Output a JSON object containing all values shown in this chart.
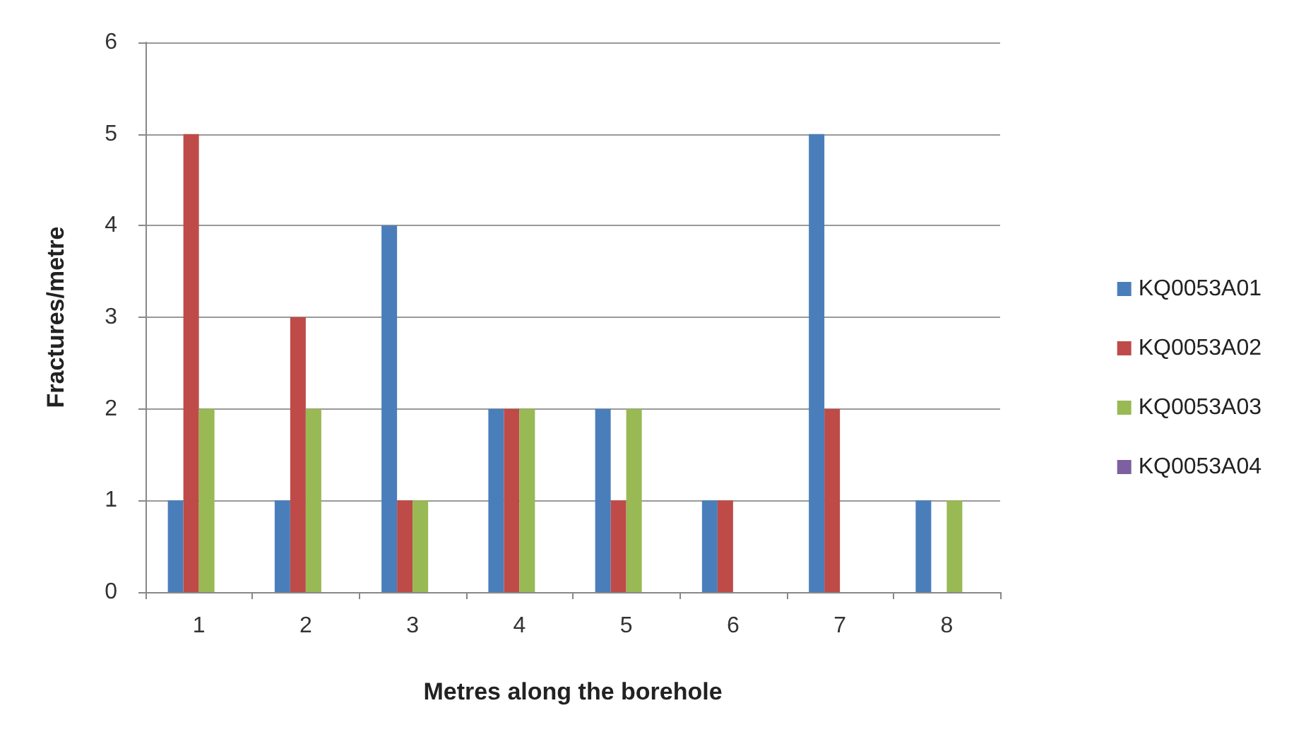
{
  "chart_data": {
    "type": "bar",
    "xlabel": "Metres along the borehole",
    "ylabel": "Fractures/metre",
    "categories": [
      "1",
      "2",
      "3",
      "4",
      "5",
      "6",
      "7",
      "8"
    ],
    "series": [
      {
        "name": "KQ0053A01",
        "color": "#4a7ebb",
        "values": [
          1,
          1,
          4,
          2,
          2,
          1,
          5,
          1
        ]
      },
      {
        "name": "KQ0053A02",
        "color": "#be4b48",
        "values": [
          5,
          3,
          1,
          2,
          1,
          1,
          2,
          0
        ]
      },
      {
        "name": "KQ0053A03",
        "color": "#98b954",
        "values": [
          2,
          2,
          1,
          2,
          2,
          0,
          0,
          1
        ]
      },
      {
        "name": "KQ0053A04",
        "color": "#7d60a0",
        "values": [
          0,
          0,
          0,
          0,
          0,
          0,
          0,
          0
        ]
      }
    ],
    "ylim": [
      0,
      6
    ],
    "yticks": [
      0,
      1,
      2,
      3,
      4,
      5,
      6
    ],
    "grid": "y",
    "legend": "right"
  }
}
